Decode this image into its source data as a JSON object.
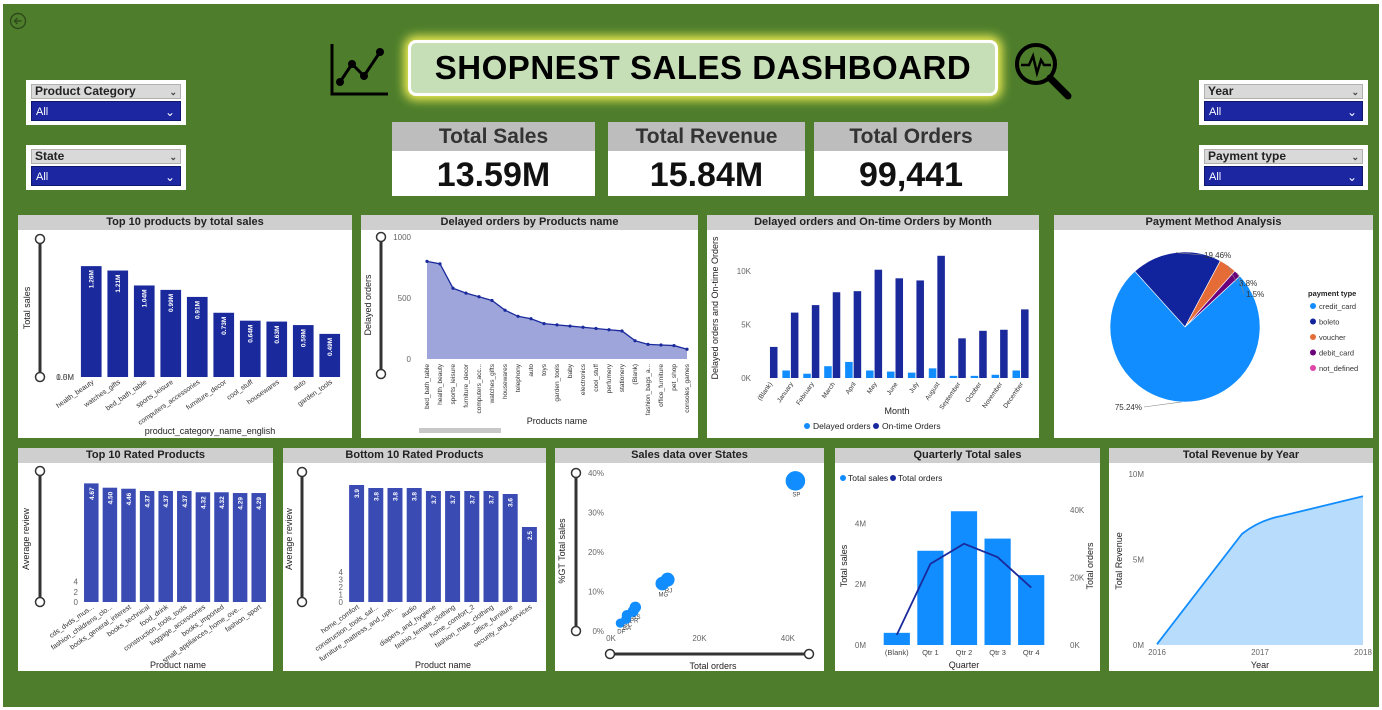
{
  "dashboard": {
    "title": "SHOPNEST SALES DASHBOARD",
    "icons": [
      "back-arrow-icon",
      "line-chart-icon",
      "magnifier-pulse-icon"
    ]
  },
  "slicers": {
    "product_category": {
      "label": "Product Category",
      "value": "All"
    },
    "state": {
      "label": "State",
      "value": "All"
    },
    "year": {
      "label": "Year",
      "value": "All"
    },
    "payment_type": {
      "label": "Payment type",
      "value": "All"
    }
  },
  "kpis": {
    "total_sales": {
      "label": "Total Sales",
      "value": "13.59M"
    },
    "total_revenue": {
      "label": "Total Revenue",
      "value": "15.84M"
    },
    "total_orders": {
      "label": "Total Orders",
      "value": "99,441"
    }
  },
  "colors": {
    "dark_blue": "#1a2a9c",
    "bar_blue2": "#3a4bb3",
    "light_blue": "#118dff",
    "area_fill": "#9ea5da",
    "canvas_green": "#4e7e2c"
  },
  "chart_data": [
    {
      "id": "top10_sales",
      "type": "bar",
      "title": "Top 10 products by total sales",
      "xlabel": "product_category_name_english",
      "ylabel": "Total sales",
      "ylim": [
        0,
        1500000
      ],
      "yticks": [
        "0.0M",
        "0.5M",
        "1.0M"
      ],
      "categories": [
        "health_beauty",
        "watches_gifts",
        "bed_bath_table",
        "sports_leisure",
        "computers_accessories",
        "furniture_decor",
        "cool_stuff",
        "housewares",
        "auto",
        "garden_tools"
      ],
      "values": [
        1260000,
        1210000,
        1040000,
        990000,
        910000,
        730000,
        640000,
        630000,
        590000,
        490000
      ],
      "labels": [
        "1.26M",
        "1.21M",
        "1.04M",
        "0.99M",
        "0.91M",
        "0.73M",
        "0.64M",
        "0.63M",
        "0.59M",
        "0.49M"
      ]
    },
    {
      "id": "delayed_by_product",
      "type": "area",
      "title": "Delayed orders by Products name",
      "xlabel": "Products name",
      "ylabel": "Delayed orders",
      "ylim": [
        0,
        1000
      ],
      "yticks": [
        "0",
        "500",
        "1000"
      ],
      "categories": [
        "bed_bath_table",
        "health_beauty",
        "sports_leisure",
        "furniture_decor",
        "computers_acc...",
        "watches_gifts",
        "housewares",
        "telephony",
        "auto",
        "toys",
        "garden_tools",
        "baby",
        "electronics",
        "cool_stuff",
        "perfumery",
        "stationery",
        "(Blank)",
        "fashion_bags_a...",
        "office_furniture",
        "pet_shop",
        "consoles_games"
      ],
      "values": [
        800,
        780,
        580,
        540,
        510,
        480,
        400,
        350,
        330,
        290,
        280,
        270,
        260,
        250,
        240,
        230,
        150,
        120,
        115,
        110,
        80
      ]
    },
    {
      "id": "delayed_ontime_month",
      "type": "bar",
      "title": "Delayed orders and On-time Orders by Month",
      "xlabel": "Month",
      "ylabel": "Delayed orders and On-time Orders",
      "ylim": [
        0,
        12500
      ],
      "yticks": [
        "0K",
        "5K",
        "10K"
      ],
      "categories": [
        "(Blank)",
        "January",
        "February",
        "March",
        "April",
        "May",
        "June",
        "July",
        "August",
        "September",
        "October",
        "November",
        "December"
      ],
      "series": [
        {
          "name": "Delayed orders",
          "values": [
            0,
            700,
            400,
            1100,
            1500,
            700,
            600,
            500,
            900,
            200,
            200,
            300,
            700
          ]
        },
        {
          "name": "On-time Orders",
          "values": [
            2900,
            6100,
            6800,
            8000,
            8100,
            10100,
            9300,
            9100,
            11400,
            3700,
            4400,
            4500,
            6400
          ]
        }
      ]
    },
    {
      "id": "payment_method",
      "type": "pie",
      "title": "Payment Method Analysis",
      "legend_title": "payment type",
      "legend": "right",
      "categories": [
        "credit_card",
        "boleto",
        "voucher",
        "debit_card",
        "not_defined"
      ],
      "values": [
        75.24,
        19.46,
        3.8,
        1.5,
        0.0
      ],
      "labels": [
        "75.24%",
        "19.46%",
        "3.8%",
        "1.5%",
        ""
      ],
      "colors": [
        "#118dff",
        "#12239e",
        "#e66c37",
        "#6b007b",
        "#e044a7"
      ]
    },
    {
      "id": "top10_rated",
      "type": "bar",
      "title": "Top 10 Rated Products",
      "xlabel": "Product name",
      "ylabel": "Average review",
      "ylim": [
        0,
        5
      ],
      "yticks": [
        "0",
        "2",
        "4"
      ],
      "categories": [
        "cds_dvds_mus...",
        "fashion_childrens_clo...",
        "books_general_interest",
        "books_technical",
        "food_drink",
        "construction_tools_tools",
        "luggage_accessories",
        "books_imported",
        "small_appliances_home_ove...",
        "fashion_sport"
      ],
      "values": [
        4.67,
        4.5,
        4.46,
        4.37,
        4.37,
        4.37,
        4.32,
        4.32,
        4.29,
        4.29
      ],
      "labels": [
        "4.67",
        "4.50",
        "4.46",
        "4.37",
        "4.37",
        "4.37",
        "4.32",
        "4.32",
        "4.29",
        "4.29"
      ]
    },
    {
      "id": "bottom10_rated",
      "type": "bar",
      "title": "Bottom 10 Rated Products",
      "xlabel": "Product name",
      "ylabel": "Average review",
      "ylim": [
        0,
        4
      ],
      "yticks": [
        "0",
        "1",
        "2",
        "3",
        "4"
      ],
      "categories": [
        "home_comfort",
        "construction_tools_saf...",
        "furniture_mattress_and_uph...",
        "audio",
        "diapers_and_hygiene",
        "fashio_female_clothing",
        "home_comfort_2",
        "fashion_male_clothing",
        "office_furniture",
        "security_and_services"
      ],
      "values": [
        3.9,
        3.8,
        3.8,
        3.8,
        3.7,
        3.7,
        3.7,
        3.7,
        3.6,
        2.5
      ],
      "labels": [
        "3.9",
        "3.8",
        "3.8",
        "3.8",
        "3.7",
        "3.7",
        "3.7",
        "3.7",
        "3.6",
        "2.5"
      ]
    },
    {
      "id": "sales_states",
      "type": "scatter",
      "title": "Sales data over States",
      "xlabel": "Total orders",
      "ylabel": "%GT Total sales",
      "xlim": [
        0,
        45000
      ],
      "ylim": [
        0,
        40
      ],
      "xticks": [
        "0K",
        "20K",
        "40K"
      ],
      "yticks": [
        "0%",
        "10%",
        "20%",
        "30%",
        "40%"
      ],
      "points": [
        {
          "label": "SP",
          "x": 41700,
          "y": 38
        },
        {
          "label": "RJ",
          "x": 12800,
          "y": 13
        },
        {
          "label": "MG",
          "x": 11600,
          "y": 12
        },
        {
          "label": "RS",
          "x": 5500,
          "y": 6
        },
        {
          "label": "PR",
          "x": 5000,
          "y": 5
        },
        {
          "label": "SC",
          "x": 3600,
          "y": 4
        },
        {
          "label": "DF",
          "x": 2100,
          "y": 2
        },
        {
          "label": "BA",
          "x": 3400,
          "y": 3
        }
      ]
    },
    {
      "id": "quarterly_sales",
      "type": "bar",
      "title": "Quarterly Total sales",
      "xlabel": "Quarter",
      "ylabel": "Total sales",
      "y2label": "Total orders",
      "ylim": [
        0,
        5000000
      ],
      "y2lim": [
        0,
        45000
      ],
      "yticks": [
        "0M",
        "2M",
        "4M"
      ],
      "y2ticks": [
        "0K",
        "20K",
        "40K"
      ],
      "categories": [
        "(Blank)",
        "Qtr 1",
        "Qtr 2",
        "Qtr 3",
        "Qtr 4"
      ],
      "series": [
        {
          "name": "Total sales",
          "values": [
            400000,
            3100000,
            4400000,
            3500000,
            2300000
          ]
        },
        {
          "name": "Total orders",
          "values": [
            3000,
            24000,
            30000,
            26000,
            17000
          ]
        }
      ]
    },
    {
      "id": "revenue_year",
      "type": "area",
      "title": "Total Revenue by Year",
      "xlabel": "Year",
      "ylabel": "Total Revenue",
      "ylim": [
        0,
        10000000
      ],
      "yticks": [
        "0M",
        "5M",
        "10M"
      ],
      "xticks": [
        "2016",
        "2017",
        "2018"
      ],
      "x": [
        2016,
        2017,
        2018
      ],
      "values": [
        50000,
        7200000,
        8700000
      ]
    }
  ]
}
